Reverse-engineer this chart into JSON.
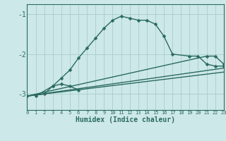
{
  "xlabel": "Humidex (Indice chaleur)",
  "ylabel": "",
  "background_color": "#cde8e8",
  "grid_color": "#a8cccc",
  "line_color": "#2a6b5e",
  "xlim": [
    0,
    23
  ],
  "ylim": [
    -3.4,
    -0.75
  ],
  "yticks": [
    -3,
    -2,
    -1
  ],
  "xticks": [
    0,
    1,
    2,
    3,
    4,
    5,
    6,
    7,
    8,
    9,
    10,
    11,
    12,
    13,
    14,
    15,
    16,
    17,
    18,
    19,
    20,
    21,
    22,
    23
  ],
  "lines": [
    {
      "x": [
        0,
        2,
        3,
        4,
        5,
        6,
        7,
        8,
        9,
        10,
        11,
        12,
        13,
        14,
        15,
        16,
        17,
        19,
        20,
        21,
        22,
        23
      ],
      "y": [
        -3.05,
        -3.0,
        -2.8,
        -2.6,
        -2.4,
        -2.1,
        -1.85,
        -1.6,
        -1.35,
        -1.15,
        -1.05,
        -1.1,
        -1.15,
        -1.15,
        -1.25,
        -1.55,
        -2.0,
        -2.05,
        -2.05,
        -2.25,
        -2.3,
        -2.3
      ],
      "marker": "D",
      "markersize": 2.5,
      "linewidth": 1.0
    },
    {
      "x": [
        1,
        3,
        4,
        5,
        6
      ],
      "y": [
        -3.05,
        -2.8,
        -2.75,
        -2.8,
        -2.9
      ],
      "marker": "D",
      "markersize": 2.5,
      "linewidth": 1.0
    },
    {
      "x": [
        0,
        21,
        22,
        23
      ],
      "y": [
        -3.05,
        -2.05,
        -2.05,
        -2.25
      ],
      "marker": "D",
      "markersize": 2.5,
      "linewidth": 1.0
    },
    {
      "x": [
        0,
        23
      ],
      "y": [
        -3.05,
        -2.45
      ],
      "marker": null,
      "markersize": 0,
      "linewidth": 1.0
    },
    {
      "x": [
        0,
        23
      ],
      "y": [
        -3.05,
        -2.35
      ],
      "marker": null,
      "markersize": 0,
      "linewidth": 1.0
    }
  ]
}
